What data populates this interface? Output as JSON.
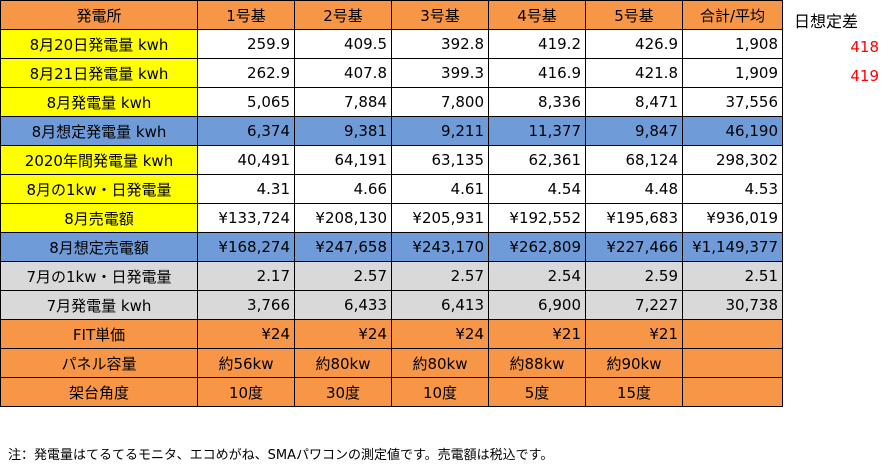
{
  "header": [
    "発電所",
    "1号基",
    "2号基",
    "3号基",
    "4号基",
    "5号基",
    "合計/平均"
  ],
  "rows": [
    {
      "label": "8月20日発電量 kwh",
      "values": [
        "259.9",
        "409.5",
        "392.8",
        "419.2",
        "426.9",
        "1,908"
      ]
    },
    {
      "label": "8月21日発電量 kwh",
      "values": [
        "262.9",
        "407.8",
        "399.3",
        "416.9",
        "421.8",
        "1,909"
      ]
    },
    {
      "label": "8月発電量 kwh",
      "values": [
        "5,065",
        "7,884",
        "7,800",
        "8,336",
        "8,471",
        "37,556"
      ]
    },
    {
      "label": "8月想定発電量 kwh",
      "values": [
        "6,374",
        "9,381",
        "9,211",
        "11,377",
        "9,847",
        "46,190"
      ]
    },
    {
      "label": "2020年間発電量 kwh",
      "values": [
        "40,491",
        "64,191",
        "63,135",
        "62,361",
        "68,124",
        "298,302"
      ]
    },
    {
      "label": "8月の1kw・日発電量",
      "values": [
        "4.31",
        "4.66",
        "4.61",
        "4.54",
        "4.48",
        "4.53"
      ]
    },
    {
      "label": "8月売電額",
      "values": [
        "¥133,724",
        "¥208,130",
        "¥205,931",
        "¥192,552",
        "¥195,683",
        "¥936,019"
      ]
    },
    {
      "label": "8月想定売電額",
      "values": [
        "¥168,274",
        "¥247,658",
        "¥243,170",
        "¥262,809",
        "¥227,466",
        "¥1,149,377"
      ]
    },
    {
      "label": "7月の1kw・日発電量",
      "values": [
        "2.17",
        "2.57",
        "2.57",
        "2.54",
        "2.59",
        "2.51"
      ]
    },
    {
      "label": "7月発電量 kwh",
      "values": [
        "3,766",
        "6,433",
        "6,413",
        "6,900",
        "7,227",
        "30,738"
      ]
    },
    {
      "label": "FIT単価",
      "values": [
        "¥24",
        "¥24",
        "¥24",
        "¥21",
        "¥21",
        ""
      ]
    },
    {
      "label": "パネル容量",
      "values": [
        "約56kw",
        "約80kw",
        "約80kw",
        "約88kw",
        "約90kw",
        ""
      ]
    },
    {
      "label": "架台角度",
      "values": [
        "10度",
        "30度",
        "10度",
        "5度",
        "15度",
        ""
      ]
    }
  ],
  "side": {
    "title": "日想定差",
    "values": [
      "418",
      "419"
    ]
  },
  "note": "注：発電量はてるてるモニタ、エコめがね、SMAパワコンの測定値です。売電額は税込です。",
  "colors": {
    "orange": "#f79646",
    "yellow": "#ffff00",
    "blue": "#6f9bd8",
    "gray": "#d9d9d9",
    "red": "#ff0000"
  }
}
